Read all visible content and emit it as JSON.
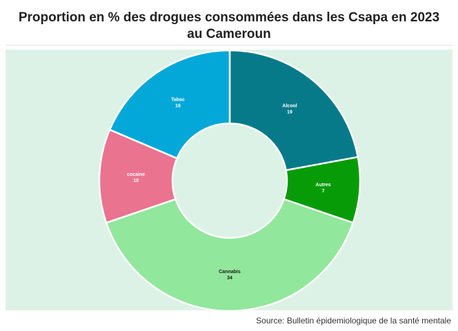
{
  "title": "Proportion en % des drogues consommées dans les Csapa en 2023 au Cameroun",
  "source": "Source: Bulletin épidemiologique de la santé mentale",
  "chart_data": {
    "type": "pie",
    "variant": "donut",
    "title": "Proportion en % des drogues consommées dans les Csapa en 2023 au Cameroun",
    "slices": [
      {
        "label": "Alcool",
        "value": 19,
        "color": "#077a89"
      },
      {
        "label": "Autres",
        "value": 7,
        "color": "#079c07"
      },
      {
        "label": "Cannabis",
        "value": 34,
        "color": "#91e79b"
      },
      {
        "label": "cocaine",
        "value": 10,
        "color": "#ea7390"
      },
      {
        "label": "Tabac",
        "value": 16,
        "color": "#04a8d8"
      }
    ],
    "legend": "none"
  }
}
